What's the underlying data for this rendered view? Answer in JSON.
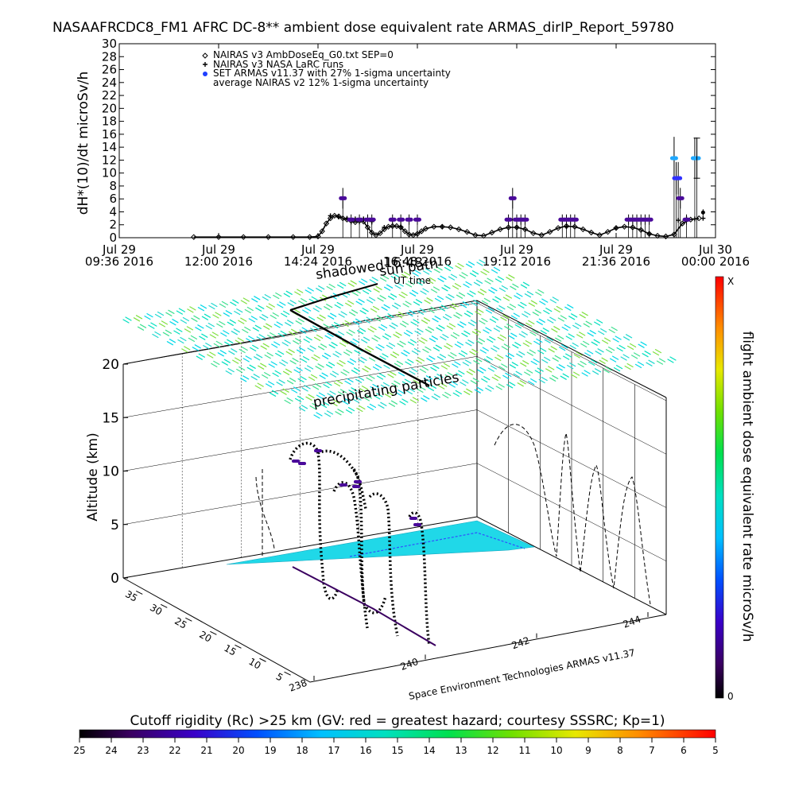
{
  "title": "NASAAFRCDC8_FM1 AFRC DC-8** ambient dose equivalent rate ARMAS_dirIP_Report_59780",
  "chart_data": [
    {
      "type": "scatter",
      "id": "timeseries",
      "ylabel": "dH*(10)/dt microSv/h",
      "ylim": [
        0,
        30
      ],
      "yticks": [
        0,
        2,
        4,
        6,
        8,
        10,
        12,
        14,
        16,
        18,
        20,
        22,
        24,
        26,
        28,
        30
      ],
      "xlim_hours": [
        9.6,
        24.0
      ],
      "xtick_hours": [
        9.6,
        12.0,
        14.4,
        16.8,
        19.2,
        21.6,
        24.0
      ],
      "xtick_line1": [
        "Jul 29",
        "Jul 29",
        "Jul 29",
        "Jul 29",
        "Jul 29",
        "Jul 29",
        "Jul 30"
      ],
      "xtick_line2": [
        "09:36 2016",
        "12:00 2016",
        "14:24 2016",
        "16:48 2016",
        "19:12 2016",
        "21:36 2016",
        "00:00 2016"
      ],
      "legend": [
        {
          "marker": "diamond",
          "label": "NAIRAS v3 AmbDoseEq_G0.txt SEP=0"
        },
        {
          "marker": "plus",
          "label": "NAIRAS v3 NASA LaRC runs"
        },
        {
          "marker": "dot",
          "color": "#1f3fff",
          "label": "SET ARMAS v11.37 with 27% 1-sigma uncertainty"
        },
        {
          "marker": "none",
          "label": "average NAIRAS v2 12% 1-sigma uncertainty"
        }
      ],
      "series": [
        {
          "name": "NAIRAS v3 AmbDoseEq_G0.txt SEP=0",
          "x": [
            11.4,
            12.0,
            12.6,
            13.2,
            13.8,
            14.2,
            14.4,
            14.5,
            14.6,
            14.7,
            14.8,
            14.9,
            15.0,
            15.1,
            15.2,
            15.3,
            15.4,
            15.5,
            15.6,
            15.7,
            15.8,
            15.9,
            16.0,
            16.1,
            16.2,
            16.3,
            16.4,
            16.5,
            16.6,
            16.7,
            16.8,
            16.9,
            17.0,
            17.2,
            17.4,
            17.6,
            17.8,
            18.0,
            18.2,
            18.4,
            18.6,
            18.8,
            19.0,
            19.2,
            19.4,
            19.6,
            19.8,
            20.0,
            20.2,
            20.4,
            20.6,
            20.8,
            21.0,
            21.2,
            21.4,
            21.6,
            21.8,
            22.0,
            22.2,
            22.4,
            22.6,
            22.8,
            23.0,
            23.2,
            23.4,
            23.6
          ],
          "y": [
            0.1,
            0.1,
            0.1,
            0.1,
            0.1,
            0.1,
            0.2,
            1.0,
            2.2,
            3.0,
            3.4,
            3.3,
            3.0,
            2.8,
            2.6,
            2.4,
            2.6,
            2.5,
            1.6,
            0.8,
            0.4,
            0.7,
            1.3,
            1.7,
            1.8,
            1.8,
            1.6,
            1.0,
            0.5,
            0.4,
            0.6,
            1.0,
            1.4,
            1.7,
            1.7,
            1.6,
            1.3,
            0.9,
            0.4,
            0.3,
            0.8,
            1.3,
            1.6,
            1.6,
            1.3,
            0.7,
            0.4,
            0.9,
            1.5,
            1.8,
            1.7,
            1.3,
            0.8,
            0.4,
            0.9,
            1.5,
            1.7,
            1.6,
            1.2,
            0.6,
            0.3,
            0.2,
            0.5,
            2.2,
            2.8,
            3.0
          ]
        },
        {
          "name": "NAIRAS v3 NASA LaRC runs",
          "x": [
            14.7,
            14.9,
            15.1,
            15.3,
            15.5,
            15.7,
            16.0,
            16.4,
            17.4,
            19.2,
            20.4,
            21.6,
            22.4,
            23.1,
            23.3,
            23.5,
            23.7
          ],
          "y": [
            3.4,
            3.2,
            3.0,
            2.9,
            2.9,
            2.5,
            1.6,
            1.7,
            1.7,
            1.6,
            1.7,
            1.5,
            0.6,
            2.7,
            2.9,
            2.9,
            3.0
          ]
        },
        {
          "name": "SET ARMAS v11.37 with 27% 1-sigma uncertainty",
          "x": [
            15.0,
            15.2,
            15.4,
            15.6,
            15.7,
            16.2,
            16.4,
            16.6,
            16.8,
            19.0,
            19.1,
            19.2,
            19.3,
            19.4,
            20.3,
            20.4,
            20.5,
            20.6,
            21.9,
            22.0,
            22.1,
            22.2,
            22.3,
            22.4,
            23.0,
            23.05,
            23.1,
            23.15,
            23.3,
            23.5,
            23.55
          ],
          "y": [
            6.1,
            2.8,
            2.8,
            2.8,
            2.8,
            2.8,
            2.8,
            2.8,
            2.8,
            2.8,
            6.1,
            2.8,
            2.8,
            2.8,
            2.8,
            2.8,
            2.8,
            2.8,
            2.8,
            2.8,
            2.8,
            2.8,
            2.8,
            2.8,
            12.3,
            9.2,
            9.2,
            6.1,
            2.8,
            12.3,
            12.3
          ],
          "err": [
            1.6,
            0.8,
            0.8,
            0.8,
            0.8,
            0.8,
            0.8,
            0.8,
            0.8,
            0.8,
            1.6,
            0.8,
            0.8,
            0.8,
            0.8,
            0.8,
            0.8,
            0.8,
            0.8,
            0.8,
            0.8,
            0.8,
            0.8,
            0.8,
            3.3,
            2.5,
            2.5,
            1.6,
            0.8,
            3.2,
            3.2
          ]
        },
        {
          "name": "average NAIRAS v2 12% 1-sigma uncertainty",
          "x": [
            23.7
          ],
          "y": [
            3.9
          ],
          "err": [
            0.5
          ]
        }
      ]
    },
    {
      "type": "scatter",
      "id": "flight3d",
      "zlabel": "Altitude (km)",
      "zlim": [
        0,
        20
      ],
      "zticks": [
        0,
        5,
        10,
        15,
        20
      ],
      "y_ticks": [
        5,
        10,
        15,
        20,
        25,
        30,
        35
      ],
      "x_ticks": [
        238,
        240,
        242,
        244
      ],
      "annotations": [
        "sun path",
        "shadowed",
        "16:48",
        "UT time",
        "precipitating particles"
      ],
      "credit": "Space Environment Technologies ARMAS v11.37",
      "colorbar": {
        "label": "flight ambient dose equivalent rate microSv/h",
        "top_label": "X",
        "bottom_label": "0"
      }
    },
    {
      "type": "heatmap",
      "id": "cutoff-colorbar",
      "label": "Cutoff rigidity (Rc) >25 km (GV: red = greatest hazard; courtesy SSSRC; Kp=1)",
      "ticks": [
        25,
        24,
        23,
        22,
        21,
        20,
        19,
        18,
        17,
        16,
        15,
        14,
        13,
        12,
        11,
        10,
        9,
        8,
        7,
        6,
        5
      ]
    }
  ]
}
